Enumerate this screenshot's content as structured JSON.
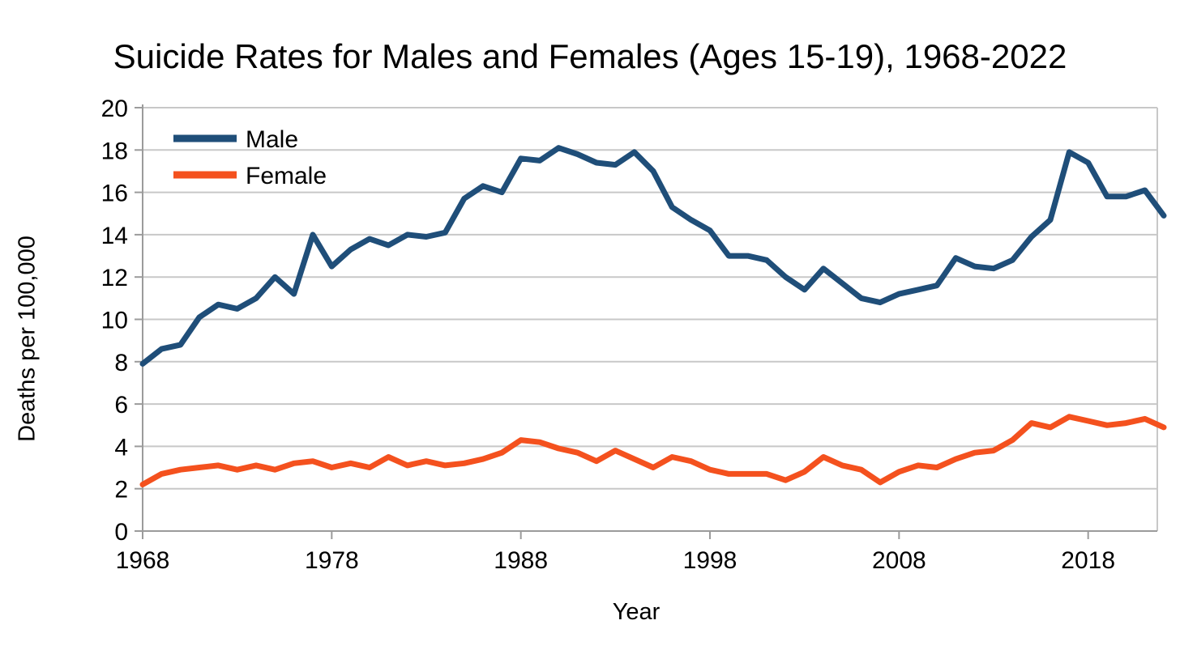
{
  "title": "Suicide Rates for Males and Females (Ages 15-19), 1968-2022",
  "colors": {
    "male_line": "#1F4E79",
    "female_line": "#F4511E",
    "gridline": "#C8C8C8",
    "axis": "#9B9B9B",
    "background": "#FFFFFF",
    "text": "#000000"
  },
  "chart_data": {
    "type": "line",
    "title": "Suicide Rates for Males and Females (Ages 15-19), 1968-2022",
    "xlabel": "Year",
    "ylabel": "Deaths per 100,000",
    "x_start": 1968,
    "x_end": 2022,
    "x_ticks": [
      1968,
      1978,
      1988,
      1998,
      2008,
      2018
    ],
    "ylim": [
      0,
      20
    ],
    "y_ticks": [
      0,
      2,
      4,
      6,
      8,
      10,
      12,
      14,
      16,
      18,
      20
    ],
    "grid": "horizontal",
    "legend_position": "top-left-inside",
    "legend_entries": [
      "Male",
      "Female"
    ],
    "years": [
      1968,
      1969,
      1970,
      1971,
      1972,
      1973,
      1974,
      1975,
      1976,
      1977,
      1978,
      1979,
      1980,
      1981,
      1982,
      1983,
      1984,
      1985,
      1986,
      1987,
      1988,
      1989,
      1990,
      1991,
      1992,
      1993,
      1994,
      1995,
      1996,
      1997,
      1998,
      1999,
      2000,
      2001,
      2002,
      2003,
      2004,
      2005,
      2006,
      2007,
      2008,
      2009,
      2010,
      2011,
      2012,
      2013,
      2014,
      2015,
      2016,
      2017,
      2018,
      2019,
      2020,
      2021,
      2022
    ],
    "series": [
      {
        "name": "Male",
        "color": "#1F4E79",
        "values": [
          7.9,
          8.6,
          8.8,
          10.1,
          10.7,
          10.5,
          11.0,
          12.0,
          11.2,
          14.0,
          12.5,
          13.3,
          13.8,
          13.5,
          14.0,
          13.9,
          14.1,
          15.7,
          16.3,
          16.0,
          17.6,
          17.5,
          18.1,
          17.8,
          17.4,
          17.3,
          17.9,
          17.0,
          15.3,
          14.7,
          14.2,
          13.0,
          13.0,
          12.8,
          12.0,
          11.4,
          12.4,
          11.7,
          11.0,
          10.8,
          11.2,
          11.4,
          11.6,
          12.9,
          12.5,
          12.4,
          12.8,
          13.9,
          14.7,
          17.9,
          17.4,
          15.8,
          15.8,
          16.1,
          14.9
        ]
      },
      {
        "name": "Female",
        "color": "#F4511E",
        "values": [
          2.2,
          2.7,
          2.9,
          3.0,
          3.1,
          2.9,
          3.1,
          2.9,
          3.2,
          3.3,
          3.0,
          3.2,
          3.0,
          3.5,
          3.1,
          3.3,
          3.1,
          3.2,
          3.4,
          3.7,
          4.3,
          4.2,
          3.9,
          3.7,
          3.3,
          3.8,
          3.4,
          3.0,
          3.5,
          3.3,
          2.9,
          2.7,
          2.7,
          2.7,
          2.4,
          2.8,
          3.5,
          3.1,
          2.9,
          2.3,
          2.8,
          3.1,
          3.0,
          3.4,
          3.7,
          3.8,
          4.3,
          5.1,
          4.9,
          5.4,
          5.2,
          5.0,
          5.1,
          5.3,
          4.9
        ]
      }
    ]
  }
}
